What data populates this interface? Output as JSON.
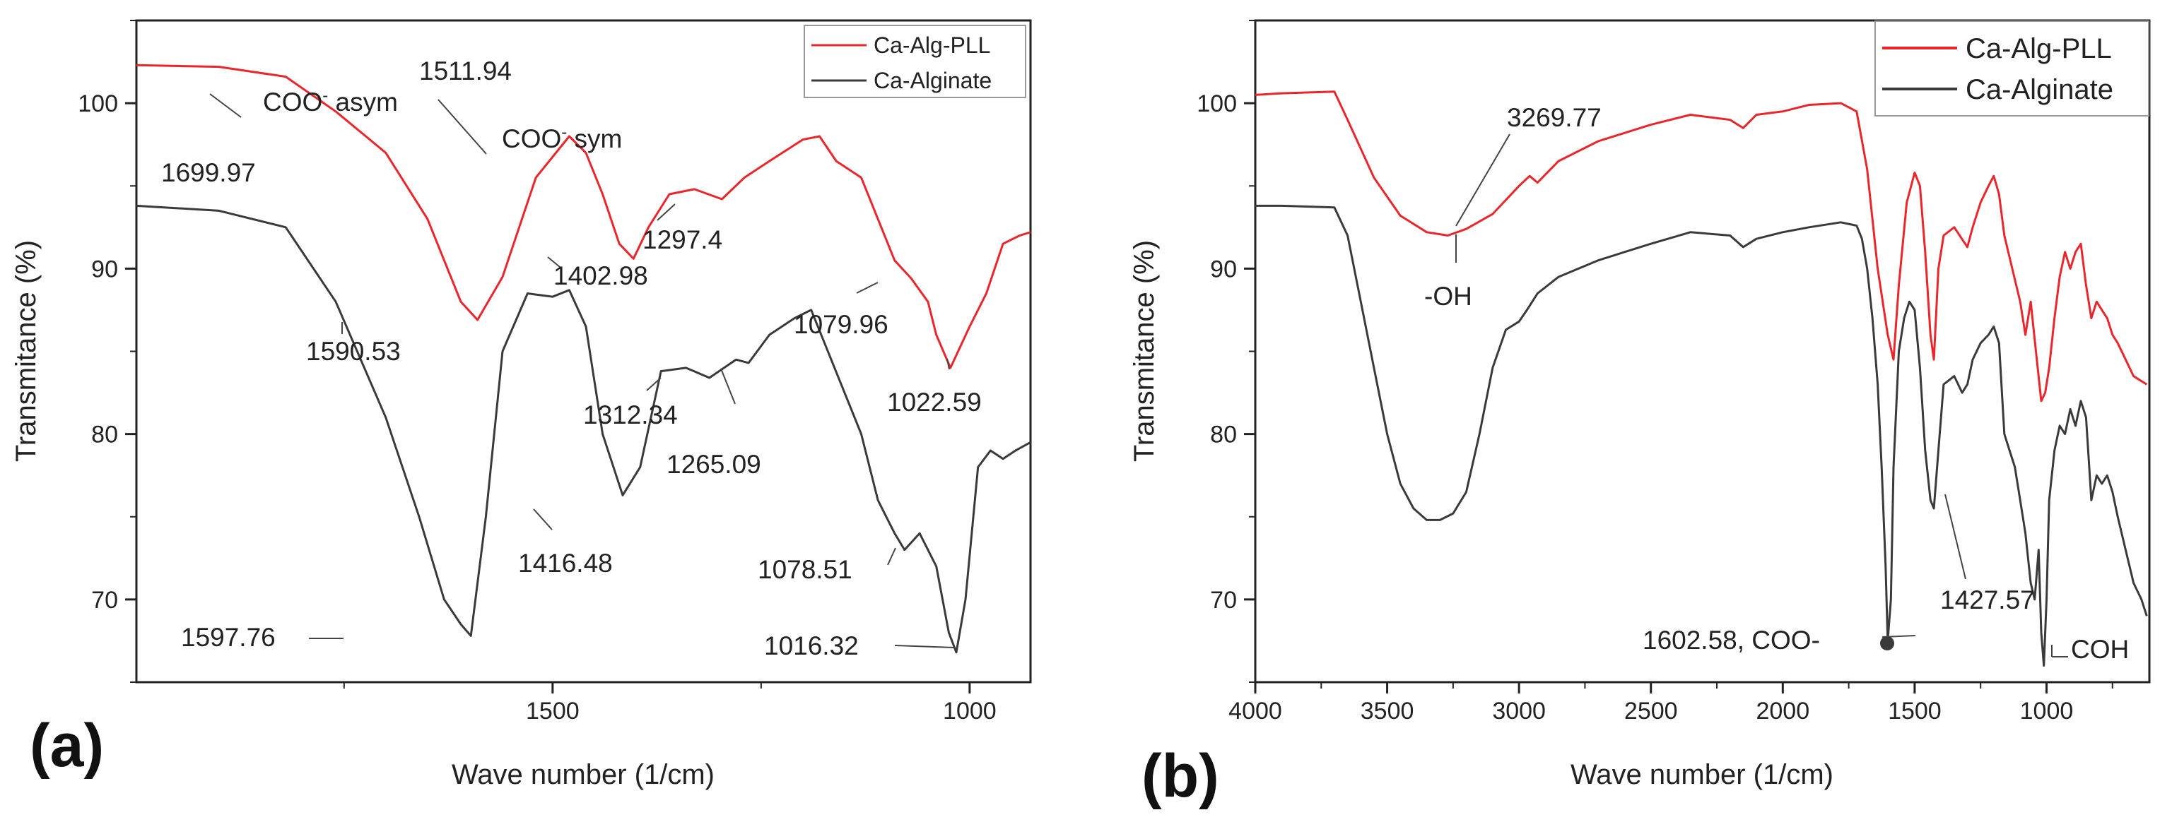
{
  "colors": {
    "alg_pll": "#e8262b",
    "alginate": "#3a3a3a",
    "axis": "#222222"
  },
  "chart_data": [
    {
      "type": "line",
      "panel_label": "(a)",
      "xlabel": "Wave number (1/cm)",
      "ylabel": "Transmitance (%)",
      "xlim": [
        1999,
        927
      ],
      "ylim": [
        65,
        105
      ],
      "xticks": [
        1500,
        1000
      ],
      "yticks": [
        70,
        80,
        90,
        100
      ],
      "legend": {
        "position": "top-right",
        "entries": [
          "Ca-Alg-PLL",
          "Ca-Alginate"
        ]
      },
      "series": [
        {
          "name": "Ca-Alg-PLL",
          "color": "#e8262b",
          "x": [
            1999,
            1900,
            1820,
            1760,
            1700,
            1650,
            1610,
            1590,
            1560,
            1520,
            1480,
            1460,
            1440,
            1420,
            1403,
            1385,
            1360,
            1330,
            1297,
            1270,
            1240,
            1200,
            1180,
            1160,
            1130,
            1110,
            1090,
            1070,
            1050,
            1040,
            1023,
            1000,
            980,
            960,
            940,
            927
          ],
          "y": [
            102.3,
            102.2,
            101.6,
            99.5,
            97.0,
            93.0,
            88.0,
            86.9,
            89.5,
            95.5,
            98.0,
            97.0,
            94.5,
            91.5,
            90.6,
            92.5,
            94.5,
            94.8,
            94.2,
            95.5,
            96.5,
            97.8,
            98.0,
            96.5,
            95.5,
            93.0,
            90.5,
            89.4,
            88.0,
            86.0,
            84.0,
            86.5,
            88.5,
            91.5,
            92.0,
            92.2
          ]
        },
        {
          "name": "Ca-Alginate",
          "color": "#3a3a3a",
          "x": [
            1999,
            1900,
            1820,
            1760,
            1700,
            1660,
            1630,
            1610,
            1598,
            1580,
            1560,
            1530,
            1500,
            1480,
            1460,
            1440,
            1416,
            1395,
            1370,
            1340,
            1312,
            1280,
            1265,
            1240,
            1210,
            1190,
            1170,
            1150,
            1130,
            1110,
            1090,
            1078,
            1060,
            1040,
            1025,
            1016,
            1005,
            990,
            975,
            960,
            945,
            927
          ],
          "y": [
            93.8,
            93.5,
            92.5,
            88.0,
            81.0,
            75.0,
            70.0,
            68.5,
            67.8,
            75.0,
            85.0,
            88.5,
            88.3,
            88.7,
            86.5,
            80.0,
            76.3,
            78.0,
            83.8,
            84.0,
            83.4,
            84.5,
            84.3,
            86.0,
            87.0,
            87.5,
            85.0,
            82.5,
            80.0,
            76.0,
            74.0,
            73.0,
            74.0,
            72.0,
            68.0,
            66.8,
            70.0,
            78.0,
            79.0,
            78.5,
            79.0,
            79.5
          ]
        }
      ],
      "annotations": [
        {
          "text": "1699.97"
        },
        {
          "text": "COO",
          "sup": "-",
          "suffix": " asym"
        },
        {
          "text": "1511.94"
        },
        {
          "text": "COO",
          "sup": "-",
          "suffix": " sym"
        },
        {
          "text": "1590.53"
        },
        {
          "text": "1402.98"
        },
        {
          "text": "1297.4"
        },
        {
          "text": "1079.96"
        },
        {
          "text": "1022.59"
        },
        {
          "text": "1312.34"
        },
        {
          "text": "1265.09"
        },
        {
          "text": "1416.48"
        },
        {
          "text": "1078.51"
        },
        {
          "text": "1597.76"
        },
        {
          "text": "1016.32"
        }
      ]
    },
    {
      "type": "line",
      "panel_label": "(b)",
      "xlabel": "Wave number (1/cm)",
      "ylabel": "Transmitance (%)",
      "xlim": [
        4000,
        610
      ],
      "ylim": [
        65,
        105
      ],
      "xticks": [
        4000,
        3500,
        3000,
        2500,
        2000,
        1500,
        1000
      ],
      "yticks": [
        70,
        80,
        90,
        100
      ],
      "legend": {
        "position": "top-right",
        "entries": [
          "Ca-Alg-PLL",
          "Ca-Alginate"
        ]
      },
      "series": [
        {
          "name": "Ca-Alg-PLL",
          "color": "#e8262b",
          "x": [
            4000,
            3900,
            3700,
            3650,
            3550,
            3450,
            3350,
            3270,
            3200,
            3100,
            3000,
            2960,
            2930,
            2850,
            2700,
            2500,
            2350,
            2200,
            2150,
            2100,
            2000,
            1900,
            1780,
            1720,
            1680,
            1640,
            1602,
            1580,
            1560,
            1530,
            1500,
            1480,
            1460,
            1440,
            1427,
            1410,
            1390,
            1350,
            1300,
            1280,
            1250,
            1220,
            1200,
            1180,
            1160,
            1130,
            1100,
            1080,
            1060,
            1040,
            1020,
            1005,
            990,
            970,
            950,
            930,
            910,
            890,
            870,
            850,
            830,
            810,
            790,
            770,
            750,
            730,
            700,
            670,
            640,
            620
          ],
          "y": [
            100.5,
            100.6,
            100.7,
            99.0,
            95.5,
            93.2,
            92.2,
            92.0,
            92.4,
            93.3,
            95.0,
            95.6,
            95.2,
            96.5,
            97.7,
            98.7,
            99.3,
            99.0,
            98.5,
            99.3,
            99.5,
            99.9,
            100.0,
            99.5,
            96.0,
            90.0,
            86.0,
            84.5,
            89.0,
            94.0,
            95.8,
            95.0,
            91.0,
            86.0,
            84.5,
            90.0,
            92.0,
            92.5,
            91.3,
            92.5,
            94.0,
            95.0,
            95.6,
            94.5,
            92.0,
            90.0,
            88.0,
            86.0,
            88.0,
            85.0,
            82.0,
            82.5,
            84.0,
            87.0,
            89.5,
            91.0,
            90.0,
            91.0,
            91.5,
            89.0,
            87.0,
            88.0,
            87.5,
            87.0,
            86.0,
            85.5,
            84.5,
            83.5,
            83.2,
            83.0
          ]
        },
        {
          "name": "Ca-Alginate",
          "color": "#3a3a3a",
          "x": [
            4000,
            3900,
            3700,
            3650,
            3600,
            3550,
            3500,
            3450,
            3400,
            3350,
            3300,
            3250,
            3200,
            3150,
            3100,
            3050,
            3000,
            2970,
            2930,
            2850,
            2700,
            2500,
            2350,
            2200,
            2150,
            2100,
            2000,
            1900,
            1780,
            1720,
            1700,
            1680,
            1660,
            1640,
            1625,
            1610,
            1602,
            1590,
            1580,
            1560,
            1540,
            1520,
            1500,
            1480,
            1460,
            1440,
            1427,
            1410,
            1390,
            1350,
            1320,
            1300,
            1280,
            1250,
            1220,
            1200,
            1180,
            1160,
            1140,
            1120,
            1100,
            1080,
            1060,
            1045,
            1030,
            1020,
            1010,
            1000,
            990,
            970,
            950,
            930,
            910,
            890,
            870,
            850,
            830,
            810,
            790,
            770,
            750,
            730,
            700,
            670,
            640,
            620
          ],
          "y": [
            93.8,
            93.8,
            93.7,
            92.0,
            88.0,
            84.0,
            80.0,
            77.0,
            75.5,
            74.8,
            74.8,
            75.2,
            76.5,
            80.0,
            84.0,
            86.3,
            86.8,
            87.5,
            88.5,
            89.5,
            90.5,
            91.5,
            92.2,
            92.0,
            91.3,
            91.8,
            92.2,
            92.5,
            92.8,
            92.6,
            91.8,
            90.0,
            87.0,
            83.0,
            78.0,
            72.0,
            67.5,
            70.0,
            78.0,
            85.0,
            87.0,
            88.0,
            87.5,
            84.0,
            79.0,
            76.0,
            75.5,
            79.0,
            83.0,
            83.5,
            82.5,
            83.0,
            84.5,
            85.5,
            86.0,
            86.5,
            85.5,
            80.0,
            79.0,
            78.0,
            76.0,
            74.0,
            71.0,
            70.0,
            73.0,
            68.0,
            66.0,
            70.0,
            76.0,
            79.0,
            80.5,
            80.0,
            81.5,
            80.5,
            82.0,
            81.0,
            76.0,
            77.5,
            77.0,
            77.5,
            76.5,
            75.0,
            73.0,
            71.0,
            70.0,
            69.0
          ]
        }
      ],
      "annotations": [
        {
          "text": "3269.77"
        },
        {
          "text": "-OH"
        },
        {
          "text": "1602.58, COO-"
        },
        {
          "text": "1427.57"
        },
        {
          "text": "COH"
        }
      ]
    }
  ]
}
